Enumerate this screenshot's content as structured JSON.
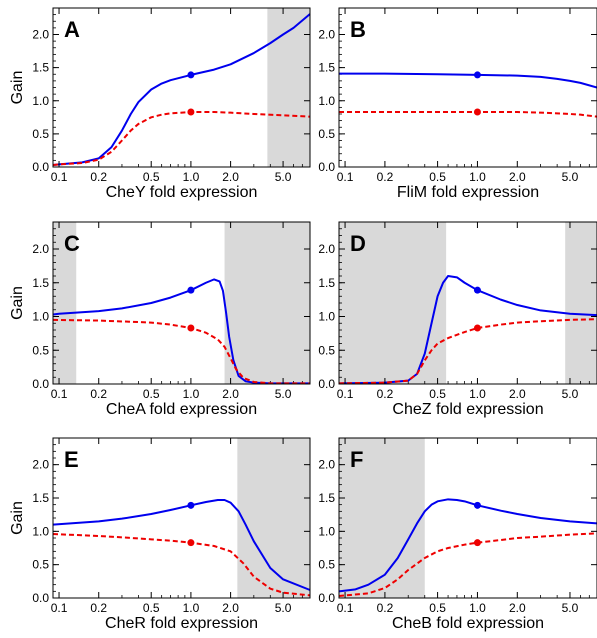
{
  "colors": {
    "fold_curve": "#0000ee",
    "gain_curve": "#ee0000",
    "shade": "#d9d9d9"
  },
  "chart_data": [
    {
      "type": "line",
      "letter": "A",
      "xlabel": "CheY fold expression",
      "ylabel": "Gain",
      "xscale": "log",
      "xlim": [
        0.09,
        8.0
      ],
      "ylim": [
        0.0,
        2.4
      ],
      "xticks": [
        0.1,
        0.2,
        0.5,
        1.0,
        2.0,
        5.0
      ],
      "xticklabels": [
        "0.1",
        "0.2",
        "0.5",
        "1.0",
        "2.0",
        "5.0"
      ],
      "yticks": [
        0.0,
        0.5,
        1.0,
        1.5,
        2.0
      ],
      "yticklabels": [
        "0.0",
        "0.5",
        "1.0",
        "1.5",
        "2.0"
      ],
      "shaded": [
        [
          3.8,
          8.0
        ]
      ],
      "series": [
        {
          "style": "solid",
          "color": "#0000ee",
          "x": [
            0.09,
            0.1,
            0.15,
            0.2,
            0.25,
            0.3,
            0.35,
            0.4,
            0.5,
            0.6,
            0.7,
            1.0,
            1.5,
            2.0,
            3.0,
            4.0,
            5.0,
            6.0,
            8.0
          ],
          "y": [
            0.03,
            0.04,
            0.07,
            0.13,
            0.3,
            0.55,
            0.8,
            0.98,
            1.17,
            1.26,
            1.31,
            1.39,
            1.47,
            1.55,
            1.72,
            1.87,
            2.0,
            2.1,
            2.31
          ]
        },
        {
          "style": "dashed",
          "color": "#ee0000",
          "x": [
            0.09,
            0.1,
            0.15,
            0.2,
            0.25,
            0.3,
            0.35,
            0.4,
            0.5,
            0.6,
            0.7,
            1.0,
            1.5,
            2.0,
            3.0,
            5.0,
            8.0
          ],
          "y": [
            0.03,
            0.04,
            0.06,
            0.11,
            0.23,
            0.4,
            0.55,
            0.65,
            0.75,
            0.79,
            0.81,
            0.83,
            0.83,
            0.82,
            0.8,
            0.78,
            0.76
          ]
        }
      ],
      "points": [
        {
          "x": 1.0,
          "y": 1.39,
          "color": "#0000ee"
        },
        {
          "x": 1.0,
          "y": 0.83,
          "color": "#ee0000"
        }
      ]
    },
    {
      "type": "line",
      "letter": "B",
      "xlabel": "FliM fold expression",
      "ylabel": "",
      "xscale": "log",
      "xlim": [
        0.09,
        8.0
      ],
      "ylim": [
        0.0,
        2.4
      ],
      "xticks": [
        0.1,
        0.2,
        0.5,
        1.0,
        2.0,
        5.0
      ],
      "xticklabels": [
        "0.1",
        "0.2",
        "0.5",
        "1.0",
        "2.0",
        "5.0"
      ],
      "yticks": [
        0.0,
        0.5,
        1.0,
        1.5,
        2.0
      ],
      "yticklabels": [
        "0.0",
        "0.5",
        "1.0",
        "1.5",
        "2.0"
      ],
      "shaded": [],
      "series": [
        {
          "style": "solid",
          "color": "#0000ee",
          "x": [
            0.09,
            0.2,
            0.5,
            1.0,
            2.0,
            3.0,
            4.0,
            5.0,
            6.0,
            8.0
          ],
          "y": [
            1.41,
            1.41,
            1.4,
            1.39,
            1.38,
            1.36,
            1.33,
            1.3,
            1.27,
            1.2
          ]
        },
        {
          "style": "dashed",
          "color": "#ee0000",
          "x": [
            0.09,
            0.2,
            0.5,
            1.0,
            2.0,
            3.0,
            4.0,
            5.0,
            6.0,
            8.0
          ],
          "y": [
            0.83,
            0.83,
            0.83,
            0.83,
            0.83,
            0.82,
            0.81,
            0.8,
            0.79,
            0.76
          ]
        }
      ],
      "points": [
        {
          "x": 1.0,
          "y": 1.39,
          "color": "#0000ee"
        },
        {
          "x": 1.0,
          "y": 0.83,
          "color": "#ee0000"
        }
      ]
    },
    {
      "type": "line",
      "letter": "C",
      "xlabel": "CheA fold expression",
      "ylabel": "Gain",
      "xscale": "log",
      "xlim": [
        0.09,
        8.0
      ],
      "ylim": [
        0.0,
        2.4
      ],
      "xticks": [
        0.1,
        0.2,
        0.5,
        1.0,
        2.0,
        5.0
      ],
      "xticklabels": [
        "0.1",
        "0.2",
        "0.5",
        "1.0",
        "2.0",
        "5.0"
      ],
      "yticks": [
        0.0,
        0.5,
        1.0,
        1.5,
        2.0
      ],
      "yticklabels": [
        "0.0",
        "0.5",
        "1.0",
        "1.5",
        "2.0"
      ],
      "shaded": [
        [
          0.09,
          0.135
        ],
        [
          1.8,
          8.0
        ]
      ],
      "series": [
        {
          "style": "solid",
          "color": "#0000ee",
          "x": [
            0.09,
            0.1,
            0.2,
            0.3,
            0.5,
            0.7,
            1.0,
            1.3,
            1.5,
            1.65,
            1.75,
            1.85,
            1.95,
            2.1,
            2.3,
            2.6,
            3.0,
            4.0,
            5.0,
            8.0
          ],
          "y": [
            1.03,
            1.04,
            1.08,
            1.12,
            1.2,
            1.28,
            1.39,
            1.5,
            1.55,
            1.52,
            1.38,
            1.05,
            0.7,
            0.35,
            0.12,
            0.04,
            0.02,
            0.01,
            0.01,
            0.01
          ]
        },
        {
          "style": "dashed",
          "color": "#ee0000",
          "x": [
            0.09,
            0.2,
            0.5,
            0.7,
            1.0,
            1.3,
            1.6,
            1.8,
            2.0,
            2.2,
            2.5,
            3.0,
            4.0,
            5.0,
            8.0
          ],
          "y": [
            0.95,
            0.94,
            0.91,
            0.88,
            0.83,
            0.76,
            0.66,
            0.55,
            0.38,
            0.22,
            0.09,
            0.03,
            0.01,
            0.01,
            0.01
          ]
        }
      ],
      "points": [
        {
          "x": 1.0,
          "y": 1.39,
          "color": "#0000ee"
        },
        {
          "x": 1.0,
          "y": 0.83,
          "color": "#ee0000"
        }
      ]
    },
    {
      "type": "line",
      "letter": "D",
      "xlabel": "CheZ fold expression",
      "ylabel": "",
      "xscale": "log",
      "xlim": [
        0.09,
        8.0
      ],
      "ylim": [
        0.0,
        2.4
      ],
      "xticks": [
        0.1,
        0.2,
        0.5,
        1.0,
        2.0,
        5.0
      ],
      "xticklabels": [
        "0.1",
        "0.2",
        "0.5",
        "1.0",
        "2.0",
        "5.0"
      ],
      "yticks": [
        0.0,
        0.5,
        1.0,
        1.5,
        2.0
      ],
      "yticklabels": [
        "0.0",
        "0.5",
        "1.0",
        "1.5",
        "2.0"
      ],
      "shaded": [
        [
          0.09,
          0.58
        ],
        [
          4.6,
          8.0
        ]
      ],
      "series": [
        {
          "style": "solid",
          "color": "#0000ee",
          "x": [
            0.09,
            0.2,
            0.3,
            0.35,
            0.4,
            0.45,
            0.5,
            0.55,
            0.6,
            0.7,
            0.8,
            1.0,
            1.5,
            2.0,
            3.0,
            5.0,
            8.0
          ],
          "y": [
            0.01,
            0.02,
            0.05,
            0.15,
            0.45,
            0.9,
            1.3,
            1.5,
            1.6,
            1.58,
            1.5,
            1.39,
            1.25,
            1.17,
            1.09,
            1.04,
            1.02
          ]
        },
        {
          "style": "dashed",
          "color": "#ee0000",
          "x": [
            0.09,
            0.2,
            0.3,
            0.35,
            0.4,
            0.45,
            0.5,
            0.6,
            0.8,
            1.0,
            1.5,
            2.0,
            3.0,
            5.0,
            8.0
          ],
          "y": [
            0.01,
            0.02,
            0.05,
            0.15,
            0.35,
            0.5,
            0.6,
            0.68,
            0.77,
            0.83,
            0.88,
            0.91,
            0.93,
            0.95,
            0.96
          ]
        }
      ],
      "points": [
        {
          "x": 1.0,
          "y": 1.39,
          "color": "#0000ee"
        },
        {
          "x": 1.0,
          "y": 0.83,
          "color": "#ee0000"
        }
      ]
    },
    {
      "type": "line",
      "letter": "E",
      "xlabel": "CheR fold expression",
      "ylabel": "Gain",
      "xscale": "log",
      "xlim": [
        0.09,
        8.0
      ],
      "ylim": [
        0.0,
        2.4
      ],
      "xticks": [
        0.1,
        0.2,
        0.5,
        1.0,
        2.0,
        5.0
      ],
      "xticklabels": [
        "0.1",
        "0.2",
        "0.5",
        "1.0",
        "2.0",
        "5.0"
      ],
      "yticks": [
        0.0,
        0.5,
        1.0,
        1.5,
        2.0
      ],
      "yticklabels": [
        "0.0",
        "0.5",
        "1.0",
        "1.5",
        "2.0"
      ],
      "shaded": [
        [
          2.25,
          8.0
        ]
      ],
      "series": [
        {
          "style": "solid",
          "color": "#0000ee",
          "x": [
            0.09,
            0.2,
            0.3,
            0.5,
            0.7,
            1.0,
            1.3,
            1.6,
            1.8,
            2.0,
            2.3,
            2.6,
            3.0,
            4.0,
            5.0,
            8.0
          ],
          "y": [
            1.1,
            1.15,
            1.19,
            1.26,
            1.32,
            1.39,
            1.44,
            1.47,
            1.47,
            1.43,
            1.3,
            1.1,
            0.85,
            0.45,
            0.28,
            0.12
          ]
        },
        {
          "style": "dashed",
          "color": "#ee0000",
          "x": [
            0.09,
            0.2,
            0.3,
            0.5,
            0.7,
            1.0,
            1.5,
            2.0,
            2.5,
            3.0,
            4.0,
            5.0,
            8.0
          ],
          "y": [
            0.96,
            0.93,
            0.91,
            0.88,
            0.86,
            0.83,
            0.78,
            0.7,
            0.52,
            0.32,
            0.14,
            0.08,
            0.04
          ]
        }
      ],
      "points": [
        {
          "x": 1.0,
          "y": 1.39,
          "color": "#0000ee"
        },
        {
          "x": 1.0,
          "y": 0.83,
          "color": "#ee0000"
        }
      ]
    },
    {
      "type": "line",
      "letter": "F",
      "xlabel": "CheB fold expression",
      "ylabel": "",
      "xscale": "log",
      "xlim": [
        0.09,
        8.0
      ],
      "ylim": [
        0.0,
        2.4
      ],
      "xticks": [
        0.1,
        0.2,
        0.5,
        1.0,
        2.0,
        5.0
      ],
      "xticklabels": [
        "0.1",
        "0.2",
        "0.5",
        "1.0",
        "2.0",
        "5.0"
      ],
      "yticks": [
        0.0,
        0.5,
        1.0,
        1.5,
        2.0
      ],
      "yticklabels": [
        "0.0",
        "0.5",
        "1.0",
        "1.5",
        "2.0"
      ],
      "shaded": [
        [
          0.09,
          0.4
        ]
      ],
      "series": [
        {
          "style": "solid",
          "color": "#0000ee",
          "x": [
            0.09,
            0.12,
            0.15,
            0.2,
            0.25,
            0.3,
            0.35,
            0.4,
            0.45,
            0.5,
            0.6,
            0.7,
            0.8,
            1.0,
            1.5,
            2.0,
            3.0,
            5.0,
            8.0
          ],
          "y": [
            0.1,
            0.13,
            0.2,
            0.35,
            0.6,
            0.88,
            1.12,
            1.3,
            1.4,
            1.45,
            1.48,
            1.47,
            1.45,
            1.39,
            1.31,
            1.26,
            1.2,
            1.15,
            1.12
          ]
        },
        {
          "style": "dashed",
          "color": "#ee0000",
          "x": [
            0.09,
            0.15,
            0.2,
            0.25,
            0.3,
            0.4,
            0.5,
            0.6,
            0.8,
            1.0,
            1.5,
            2.0,
            3.0,
            5.0,
            8.0
          ],
          "y": [
            0.03,
            0.07,
            0.15,
            0.28,
            0.42,
            0.6,
            0.7,
            0.75,
            0.8,
            0.83,
            0.87,
            0.9,
            0.92,
            0.95,
            0.97
          ]
        }
      ],
      "points": [
        {
          "x": 1.0,
          "y": 1.39,
          "color": "#0000ee"
        },
        {
          "x": 1.0,
          "y": 0.83,
          "color": "#ee0000"
        }
      ]
    }
  ]
}
